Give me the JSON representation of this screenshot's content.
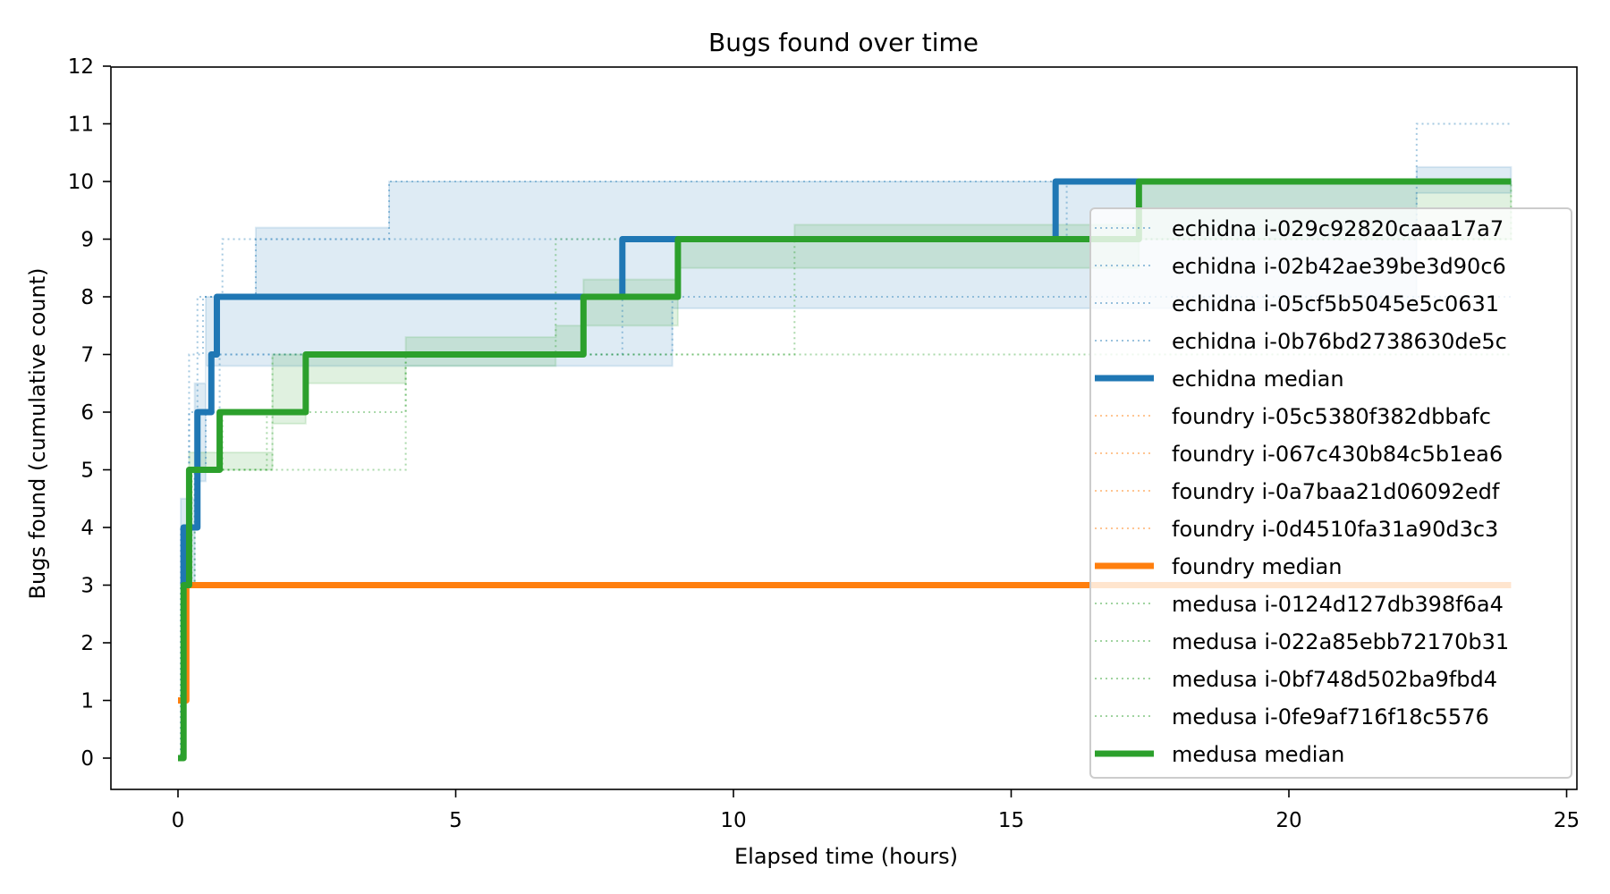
{
  "chart_data": {
    "type": "line",
    "subtype": "step",
    "title": "Bugs found over time",
    "xlabel": "Elapsed time (hours)",
    "ylabel": "Bugs found (cumulative count)",
    "xlim": [
      -1.2,
      25.3
    ],
    "ylim": [
      -0.55,
      12
    ],
    "xticks": [
      0,
      5,
      10,
      15,
      20,
      25
    ],
    "yticks": [
      0,
      1,
      2,
      3,
      4,
      5,
      6,
      7,
      8,
      9,
      10,
      11,
      12
    ],
    "grid": false,
    "legend_position": "lower right",
    "colors": {
      "echidna": "#1f77b4",
      "foundry": "#ff7f0e",
      "medusa": "#2ca02c"
    },
    "series": [
      {
        "name": "echidna i-029c92820caaa17a7",
        "tool": "echidna",
        "style": "dotted",
        "x": [
          0,
          0.05,
          0.2,
          0.45,
          1.4,
          3.8,
          24
        ],
        "y": [
          0,
          3,
          7,
          8,
          9,
          10,
          10
        ]
      },
      {
        "name": "echidna i-02b42ae39be3d90c6",
        "tool": "echidna",
        "style": "dotted",
        "x": [
          0,
          0.1,
          0.35,
          0.6,
          8.0,
          16.0,
          24
        ],
        "y": [
          0,
          4,
          6,
          7,
          9,
          10,
          10
        ]
      },
      {
        "name": "echidna i-05cf5b5045e5c0631",
        "tool": "echidna",
        "style": "dotted",
        "x": [
          0,
          0.1,
          0.3,
          0.5,
          0.75,
          8.9,
          15.8,
          24
        ],
        "y": [
          0,
          3,
          5,
          6,
          7,
          8,
          8,
          8
        ]
      },
      {
        "name": "echidna i-0b76bd2738630de5c",
        "tool": "echidna",
        "style": "dotted",
        "x": [
          0,
          0.05,
          0.2,
          0.35,
          0.6,
          0.8,
          22.3,
          24
        ],
        "y": [
          0,
          4,
          6,
          8,
          8,
          9,
          11,
          11
        ]
      },
      {
        "name": "echidna median",
        "tool": "echidna",
        "style": "solid",
        "x": [
          0.05,
          0.1,
          0.35,
          0.6,
          0.7,
          8.0,
          15.8,
          24
        ],
        "y": [
          3,
          4,
          6,
          7,
          8,
          9,
          10,
          10
        ]
      },
      {
        "name": "foundry i-05c5380f382dbbafc",
        "tool": "foundry",
        "style": "dotted",
        "x": [
          0,
          0.15,
          24
        ],
        "y": [
          1,
          3,
          3
        ]
      },
      {
        "name": "foundry i-067c430b84c5b1ea6",
        "tool": "foundry",
        "style": "dotted",
        "x": [
          0,
          0.15,
          24
        ],
        "y": [
          1,
          3,
          3
        ]
      },
      {
        "name": "foundry i-0a7baa21d06092edf",
        "tool": "foundry",
        "style": "dotted",
        "x": [
          0,
          0.15,
          24
        ],
        "y": [
          1,
          3,
          3
        ]
      },
      {
        "name": "foundry i-0d4510fa31a90d3c3",
        "tool": "foundry",
        "style": "dotted",
        "x": [
          0,
          0.15,
          24
        ],
        "y": [
          1,
          3,
          3
        ]
      },
      {
        "name": "foundry median",
        "tool": "foundry",
        "style": "solid",
        "x": [
          0,
          0.15,
          24
        ],
        "y": [
          1,
          3,
          3
        ]
      },
      {
        "name": "medusa i-0124d127db398f6a4",
        "tool": "medusa",
        "style": "dotted",
        "x": [
          0,
          0.1,
          0.25,
          1.6,
          2.3,
          7.3,
          9.0,
          24
        ],
        "y": [
          0,
          3,
          5,
          6,
          7,
          8,
          9,
          9
        ]
      },
      {
        "name": "medusa i-022a85ebb72170b31",
        "tool": "medusa",
        "style": "dotted",
        "x": [
          0,
          0.1,
          0.2,
          1.7,
          6.8,
          17.3,
          24
        ],
        "y": [
          0,
          3,
          5,
          7,
          9,
          10,
          10
        ]
      },
      {
        "name": "medusa i-0bf748d502ba9fbd4",
        "tool": "medusa",
        "style": "dotted",
        "x": [
          0,
          0.1,
          0.2,
          4.1,
          24
        ],
        "y": [
          0,
          3,
          5,
          7,
          7
        ]
      },
      {
        "name": "medusa i-0fe9af716f18c5576",
        "tool": "medusa",
        "style": "dotted",
        "x": [
          0,
          0.1,
          0.3,
          0.8,
          4.1,
          11.1,
          24
        ],
        "y": [
          0,
          3,
          5,
          6,
          7,
          9,
          10
        ]
      },
      {
        "name": "medusa median",
        "tool": "medusa",
        "style": "solid",
        "x": [
          0,
          0.1,
          0.2,
          0.75,
          2.3,
          7.3,
          9.0,
          17.3,
          24
        ],
        "y": [
          0,
          3,
          5,
          6,
          7,
          8,
          9,
          10,
          10
        ]
      }
    ],
    "bands": [
      {
        "tool": "echidna",
        "x": [
          0.05,
          0.3,
          0.5,
          1.4,
          3.8,
          8.0,
          8.9,
          15.8,
          22.3,
          24
        ],
        "lower": [
          3,
          4.8,
          6.8,
          6.8,
          6.8,
          6.8,
          7.8,
          7.8,
          9.8,
          9.8
        ],
        "upper": [
          4.5,
          6.5,
          8,
          9.2,
          10,
          10,
          10,
          10,
          10.25,
          10.25
        ]
      },
      {
        "tool": "medusa",
        "x": [
          0.1,
          0.2,
          1.7,
          2.3,
          4.1,
          6.8,
          7.3,
          9.0,
          11.1,
          17.3,
          24
        ],
        "lower": [
          3,
          5,
          5.8,
          6.5,
          6.8,
          7,
          7.5,
          8.5,
          8.5,
          9,
          9.75
        ],
        "upper": [
          3.2,
          5.3,
          7,
          7,
          7.3,
          7.5,
          8.3,
          9,
          9.25,
          10,
          10
        ]
      }
    ]
  },
  "legend": {
    "entries": [
      {
        "label": "echidna i-029c92820caaa17a7",
        "color": "#1f77b4",
        "style": "dotted"
      },
      {
        "label": "echidna i-02b42ae39be3d90c6",
        "color": "#1f77b4",
        "style": "dotted"
      },
      {
        "label": "echidna i-05cf5b5045e5c0631",
        "color": "#1f77b4",
        "style": "dotted"
      },
      {
        "label": "echidna i-0b76bd2738630de5c",
        "color": "#1f77b4",
        "style": "dotted"
      },
      {
        "label": "echidna median",
        "color": "#1f77b4",
        "style": "solid"
      },
      {
        "label": "foundry i-05c5380f382dbbafc",
        "color": "#ff7f0e",
        "style": "dotted"
      },
      {
        "label": "foundry i-067c430b84c5b1ea6",
        "color": "#ff7f0e",
        "style": "dotted"
      },
      {
        "label": "foundry i-0a7baa21d06092edf",
        "color": "#ff7f0e",
        "style": "dotted"
      },
      {
        "label": "foundry i-0d4510fa31a90d3c3",
        "color": "#ff7f0e",
        "style": "dotted"
      },
      {
        "label": "foundry median",
        "color": "#ff7f0e",
        "style": "solid"
      },
      {
        "label": "medusa i-0124d127db398f6a4",
        "color": "#2ca02c",
        "style": "dotted"
      },
      {
        "label": "medusa i-022a85ebb72170b31",
        "color": "#2ca02c",
        "style": "dotted"
      },
      {
        "label": "medusa i-0bf748d502ba9fbd4",
        "color": "#2ca02c",
        "style": "dotted"
      },
      {
        "label": "medusa i-0fe9af716f18c5576",
        "color": "#2ca02c",
        "style": "dotted"
      },
      {
        "label": "medusa median",
        "color": "#2ca02c",
        "style": "solid"
      }
    ]
  }
}
